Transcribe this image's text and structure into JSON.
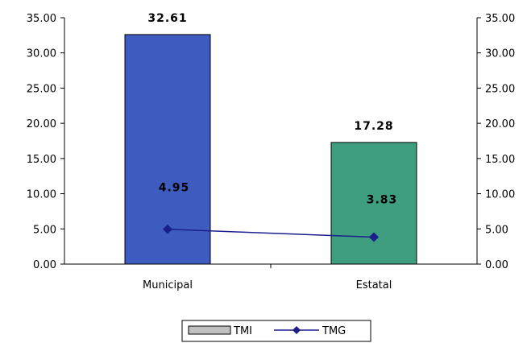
{
  "chart_data": {
    "type": "bar",
    "categories": [
      "Municipal",
      "Estatal"
    ],
    "series": [
      {
        "name": "TMI",
        "type": "bar",
        "values": [
          32.61,
          17.28
        ],
        "value_labels": [
          "32.61",
          "17.28"
        ],
        "colors": [
          "#3e5cbf",
          "#3f9e80"
        ]
      },
      {
        "name": "TMG",
        "type": "line",
        "values": [
          4.95,
          3.83
        ],
        "value_labels": [
          "4.95",
          "3.83"
        ],
        "color": "#1a1f8c",
        "marker": "diamond"
      }
    ],
    "ylim": [
      0,
      35
    ],
    "y_ticks": [
      "0.00",
      "5.00",
      "10.00",
      "15.00",
      "20.00",
      "25.00",
      "30.00",
      "35.00"
    ],
    "y_tick_values": [
      0,
      5,
      10,
      15,
      20,
      25,
      30,
      35
    ],
    "secondary_ylim": [
      0,
      35
    ],
    "grid": false,
    "legend_position": "bottom-center",
    "legend_entries": [
      "TMI",
      "TMG"
    ]
  }
}
